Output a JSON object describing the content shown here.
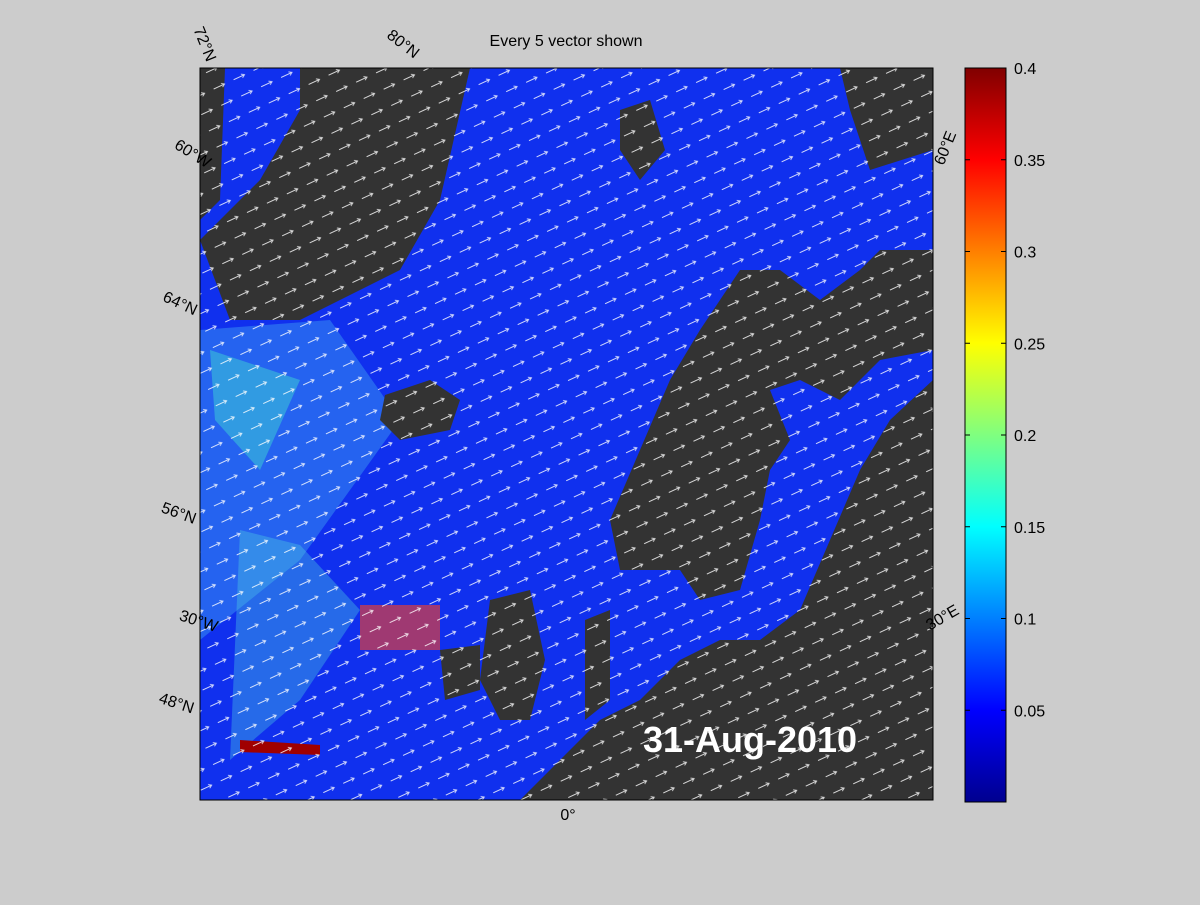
{
  "map": {
    "title": "Every 5 vector shown",
    "date_label": "31-Aug-2010",
    "graticule_labels": [
      "72°N",
      "80°N",
      "60°W",
      "64°N",
      "56°N",
      "30°W",
      "48°N",
      "0°",
      "30°E",
      "60°E"
    ]
  },
  "colorbar": {
    "range": [
      0,
      0.4
    ],
    "ticks": [
      0.05,
      0.1,
      0.15,
      0.2,
      0.25,
      0.3,
      0.35,
      0.4
    ]
  }
}
